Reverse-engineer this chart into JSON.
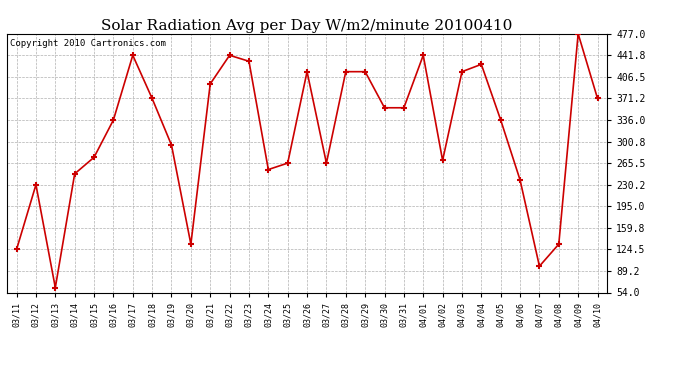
{
  "title": "Solar Radiation Avg per Day W/m2/minute 20100410",
  "copyright": "Copyright 2010 Cartronics.com",
  "labels": [
    "03/11",
    "03/12",
    "03/13",
    "03/14",
    "03/15",
    "03/16",
    "03/17",
    "03/18",
    "03/19",
    "03/20",
    "03/21",
    "03/22",
    "03/23",
    "03/24",
    "03/25",
    "03/26",
    "03/27",
    "03/28",
    "03/29",
    "03/30",
    "03/31",
    "04/01",
    "04/02",
    "04/03",
    "04/04",
    "04/05",
    "04/06",
    "04/07",
    "04/08",
    "04/09",
    "04/10"
  ],
  "values": [
    124.5,
    230.2,
    62.0,
    248.0,
    275.0,
    336.0,
    441.8,
    371.2,
    295.0,
    133.0,
    395.0,
    441.8,
    432.0,
    255.0,
    265.5,
    415.0,
    265.5,
    415.0,
    415.0,
    356.0,
    356.0,
    441.8,
    270.0,
    415.0,
    427.0,
    336.0,
    238.0,
    97.0,
    133.0,
    477.0,
    371.2
  ],
  "ymin": 54.0,
  "ymax": 477.0,
  "yticks": [
    54.0,
    89.2,
    124.5,
    159.8,
    195.0,
    230.2,
    265.5,
    300.8,
    336.0,
    371.2,
    406.5,
    441.8,
    477.0
  ],
  "line_color": "#cc0000",
  "marker_color": "#cc0000",
  "bg_color": "#ffffff",
  "plot_bg_color": "#ffffff",
  "grid_color": "#b0b0b0",
  "title_fontsize": 11,
  "copyright_fontsize": 6.5,
  "tick_fontsize": 7,
  "xtick_fontsize": 6
}
